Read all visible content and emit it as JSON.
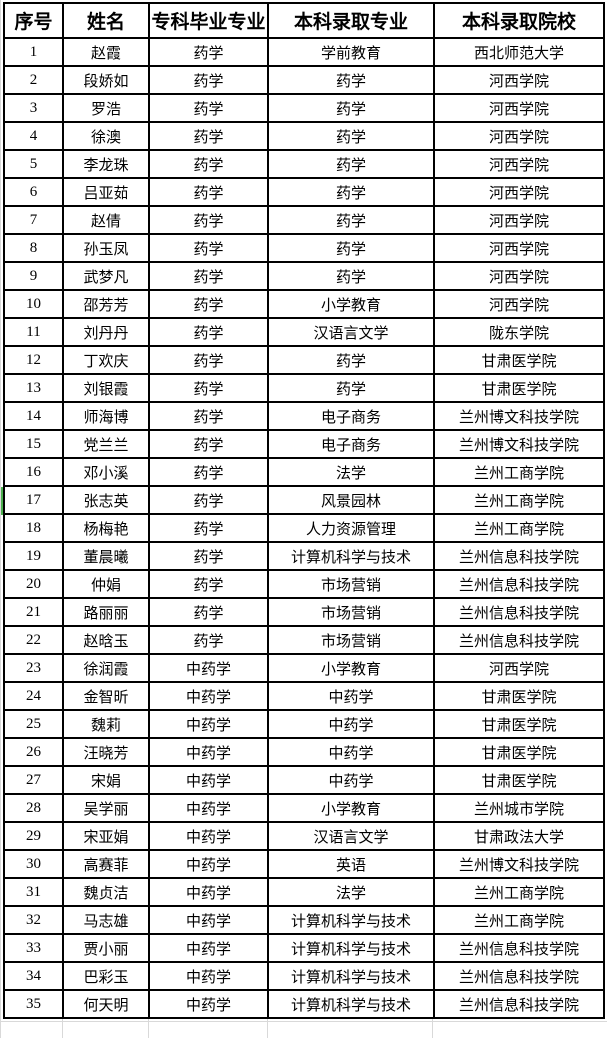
{
  "colors": {
    "background": "#ffffff",
    "table_border": "#000000",
    "text": "#000000",
    "gridline": "#d9d9d9",
    "selection_marker_green": "#4caf50"
  },
  "selection": {
    "row_number": 17
  },
  "table": {
    "columns": [
      "序号",
      "姓名",
      "专科毕业专业",
      "本科录取专业",
      "本科录取院校"
    ],
    "rows": [
      [
        "1",
        "赵霞",
        "药学",
        "学前教育",
        "西北师范大学"
      ],
      [
        "2",
        "段娇如",
        "药学",
        "药学",
        "河西学院"
      ],
      [
        "3",
        "罗浩",
        "药学",
        "药学",
        "河西学院"
      ],
      [
        "4",
        "徐澳",
        "药学",
        "药学",
        "河西学院"
      ],
      [
        "5",
        "李龙珠",
        "药学",
        "药学",
        "河西学院"
      ],
      [
        "6",
        "吕亚茹",
        "药学",
        "药学",
        "河西学院"
      ],
      [
        "7",
        "赵倩",
        "药学",
        "药学",
        "河西学院"
      ],
      [
        "8",
        "孙玉凤",
        "药学",
        "药学",
        "河西学院"
      ],
      [
        "9",
        "武梦凡",
        "药学",
        "药学",
        "河西学院"
      ],
      [
        "10",
        "邵芳芳",
        "药学",
        "小学教育",
        "河西学院"
      ],
      [
        "11",
        "刘丹丹",
        "药学",
        "汉语言文学",
        "陇东学院"
      ],
      [
        "12",
        "丁欢庆",
        "药学",
        "药学",
        "甘肃医学院"
      ],
      [
        "13",
        "刘银霞",
        "药学",
        "药学",
        "甘肃医学院"
      ],
      [
        "14",
        "师海博",
        "药学",
        "电子商务",
        "兰州博文科技学院"
      ],
      [
        "15",
        "党兰兰",
        "药学",
        "电子商务",
        "兰州博文科技学院"
      ],
      [
        "16",
        "邓小溪",
        "药学",
        "法学",
        "兰州工商学院"
      ],
      [
        "17",
        "张志英",
        "药学",
        "风景园林",
        "兰州工商学院"
      ],
      [
        "18",
        "杨梅艳",
        "药学",
        "人力资源管理",
        "兰州工商学院"
      ],
      [
        "19",
        "董晨曦",
        "药学",
        "计算机科学与技术",
        "兰州信息科技学院"
      ],
      [
        "20",
        "仲娟",
        "药学",
        "市场营销",
        "兰州信息科技学院"
      ],
      [
        "21",
        "路丽丽",
        "药学",
        "市场营销",
        "兰州信息科技学院"
      ],
      [
        "22",
        "赵晗玉",
        "药学",
        "市场营销",
        "兰州信息科技学院"
      ],
      [
        "23",
        "徐润霞",
        "中药学",
        "小学教育",
        "河西学院"
      ],
      [
        "24",
        "金智昕",
        "中药学",
        "中药学",
        "甘肃医学院"
      ],
      [
        "25",
        "魏莉",
        "中药学",
        "中药学",
        "甘肃医学院"
      ],
      [
        "26",
        "汪晓芳",
        "中药学",
        "中药学",
        "甘肃医学院"
      ],
      [
        "27",
        "宋娟",
        "中药学",
        "中药学",
        "甘肃医学院"
      ],
      [
        "28",
        "吴学丽",
        "中药学",
        "小学教育",
        "兰州城市学院"
      ],
      [
        "29",
        "宋亚娟",
        "中药学",
        "汉语言文学",
        "甘肃政法大学"
      ],
      [
        "30",
        "高赛菲",
        "中药学",
        "英语",
        "兰州博文科技学院"
      ],
      [
        "31",
        "魏贞洁",
        "中药学",
        "法学",
        "兰州工商学院"
      ],
      [
        "32",
        "马志雄",
        "中药学",
        "计算机科学与技术",
        "兰州工商学院"
      ],
      [
        "33",
        "贾小丽",
        "中药学",
        "计算机科学与技术",
        "兰州信息科技学院"
      ],
      [
        "34",
        "巴彩玉",
        "中药学",
        "计算机科学与技术",
        "兰州信息科技学院"
      ],
      [
        "35",
        "何天明",
        "中药学",
        "计算机科学与技术",
        "兰州信息科技学院"
      ]
    ]
  }
}
